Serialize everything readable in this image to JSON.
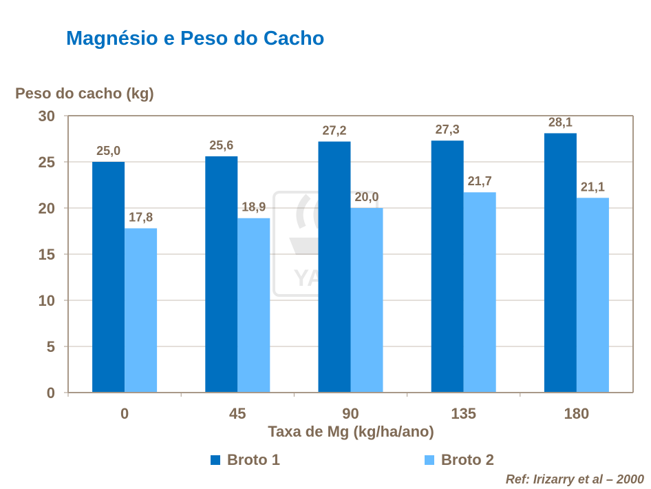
{
  "chart_data": {
    "type": "bar",
    "title": "Magnésio e Peso do Cacho",
    "ylabel": "Peso do cacho (kg)",
    "xlabel": "Taxa de Mg (kg/ha/ano)",
    "categories": [
      "0",
      "45",
      "90",
      "135",
      "180"
    ],
    "ylim": [
      0,
      30
    ],
    "yticks": [
      0,
      5,
      10,
      15,
      20,
      25,
      30
    ],
    "grid": true,
    "legend_position": "bottom",
    "series": [
      {
        "name": "Broto 1",
        "values": [
          25.0,
          25.6,
          27.2,
          27.3,
          28.1
        ],
        "labels": [
          "25,0",
          "25,6",
          "27,2",
          "27,3",
          "28,1"
        ],
        "color": "#0070c0"
      },
      {
        "name": "Broto 2",
        "values": [
          17.8,
          18.9,
          20.0,
          21.7,
          21.1
        ],
        "labels": [
          "17,8",
          "18,9",
          "20,0",
          "21,7",
          "21,1"
        ],
        "color": "#66bbff"
      }
    ]
  },
  "reference": "Ref: Irizarry et al – 2000",
  "watermark": {
    "text": "YARA"
  }
}
